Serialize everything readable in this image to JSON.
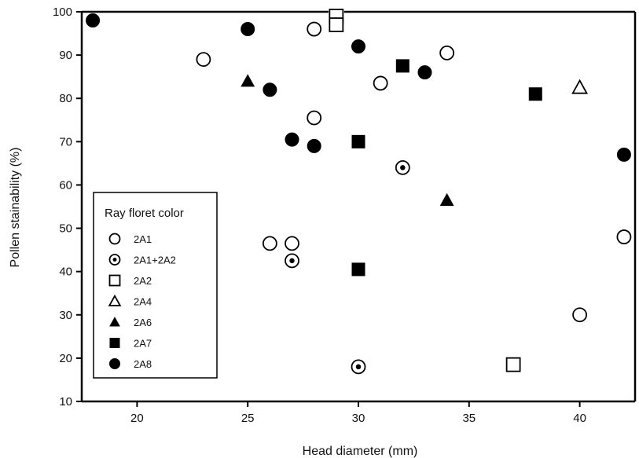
{
  "chart_data": {
    "type": "scatter",
    "xlabel": "Head diameter (mm)",
    "ylabel": "Pollen stainability (%)",
    "xlim": [
      17.5,
      42.5
    ],
    "ylim": [
      10,
      100
    ],
    "xticks": [
      20,
      25,
      30,
      35,
      40
    ],
    "yticks": [
      10,
      20,
      30,
      40,
      50,
      60,
      70,
      80,
      90,
      100
    ],
    "grid": false,
    "legend": {
      "title": "Ray floret color",
      "placement": "lower-left"
    },
    "series": [
      {
        "name": "2A1",
        "marker": "circle-open",
        "points": [
          [
            23,
            89
          ],
          [
            28,
            96
          ],
          [
            26,
            46.5
          ],
          [
            27,
            46.5
          ],
          [
            28,
            75.5
          ],
          [
            31,
            83.5
          ],
          [
            34,
            90.5
          ],
          [
            40,
            30
          ],
          [
            42,
            48
          ]
        ]
      },
      {
        "name": "2A1+2A2",
        "marker": "circle-dot",
        "points": [
          [
            27,
            42.5
          ],
          [
            32,
            64
          ],
          [
            30,
            18
          ]
        ]
      },
      {
        "name": "2A2",
        "marker": "square-open",
        "points": [
          [
            29,
            99
          ],
          [
            29,
            97
          ],
          [
            37,
            18.5
          ]
        ]
      },
      {
        "name": "2A4",
        "marker": "triangle-open",
        "points": [
          [
            40,
            82.5
          ]
        ]
      },
      {
        "name": "2A6",
        "marker": "triangle-filled",
        "points": [
          [
            25,
            84
          ],
          [
            34,
            56.5
          ]
        ]
      },
      {
        "name": "2A7",
        "marker": "square-filled",
        "points": [
          [
            32,
            87.5
          ],
          [
            38,
            81
          ],
          [
            30,
            70
          ],
          [
            30,
            40.5
          ]
        ]
      },
      {
        "name": "2A8",
        "marker": "circle-filled",
        "points": [
          [
            18,
            98
          ],
          [
            25,
            96
          ],
          [
            30,
            92
          ],
          [
            33,
            86
          ],
          [
            26,
            82
          ],
          [
            27,
            70.5
          ],
          [
            28,
            69
          ],
          [
            42,
            67
          ]
        ]
      }
    ]
  }
}
